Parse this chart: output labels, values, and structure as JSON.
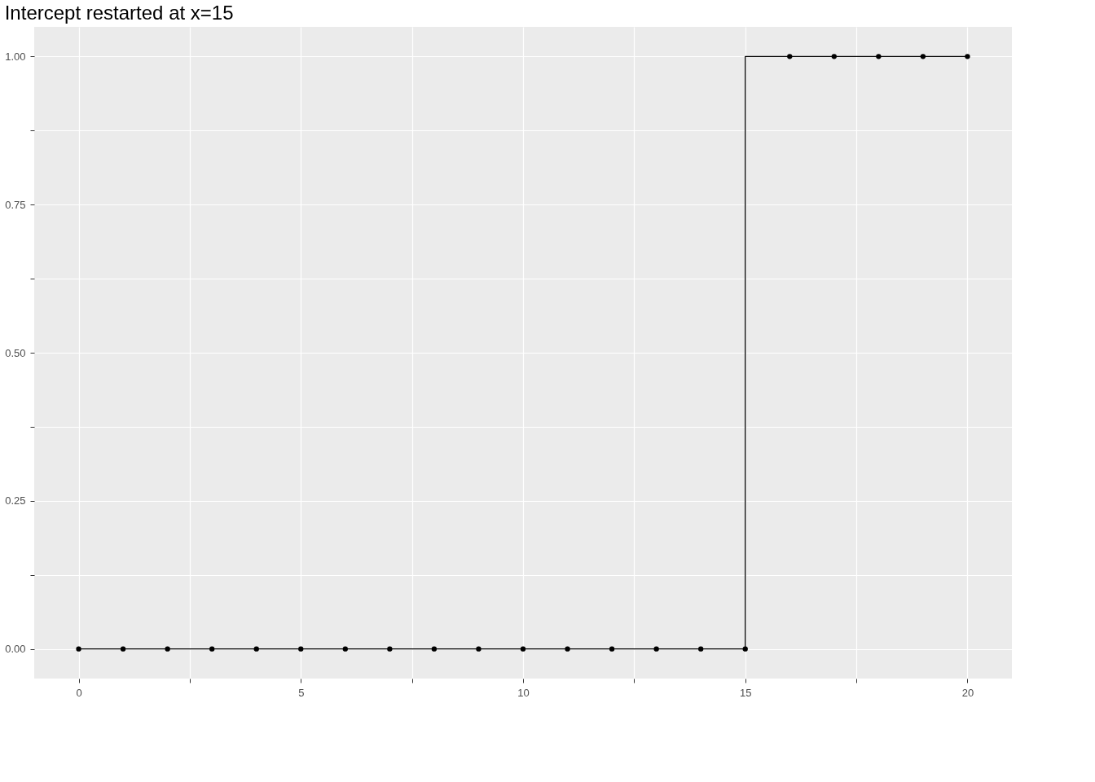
{
  "chart_data": {
    "type": "step",
    "title": "Intercept restarted at x=15",
    "x": [
      0,
      1,
      2,
      3,
      4,
      5,
      6,
      7,
      8,
      9,
      10,
      11,
      12,
      13,
      14,
      15,
      16,
      17,
      18,
      19,
      20
    ],
    "series": [
      {
        "color": "#000000",
        "values": [
          0,
          0,
          0,
          0,
          0,
          0,
          0,
          0,
          0,
          0,
          0,
          0,
          0,
          0,
          0,
          0,
          1,
          1,
          1,
          1,
          1
        ]
      }
    ],
    "xlim": [
      -1,
      21
    ],
    "xticks": [
      0,
      {
        "value": 2.5,
        "label": null
      },
      5,
      {
        "value": 7.5,
        "label": null
      },
      10,
      {
        "value": 12.5,
        "label": null
      },
      15,
      {
        "value": 17.5,
        "label": null
      },
      20
    ],
    "ylim": [
      -0.05,
      1.05
    ],
    "yticks": [
      {
        "value": 0,
        "label": "0.00"
      },
      {
        "value": 0.125,
        "label": null
      },
      {
        "value": 0.25,
        "label": "0.25"
      },
      {
        "value": 0.375,
        "label": null
      },
      {
        "value": 0.5,
        "label": "0.50"
      },
      {
        "value": 0.625,
        "label": null
      },
      {
        "value": 0.75,
        "label": "0.75"
      },
      {
        "value": 0.875,
        "label": null
      },
      {
        "value": 1,
        "label": "1.00"
      }
    ],
    "grid": true,
    "marker": "circle",
    "line_style": "solid"
  }
}
